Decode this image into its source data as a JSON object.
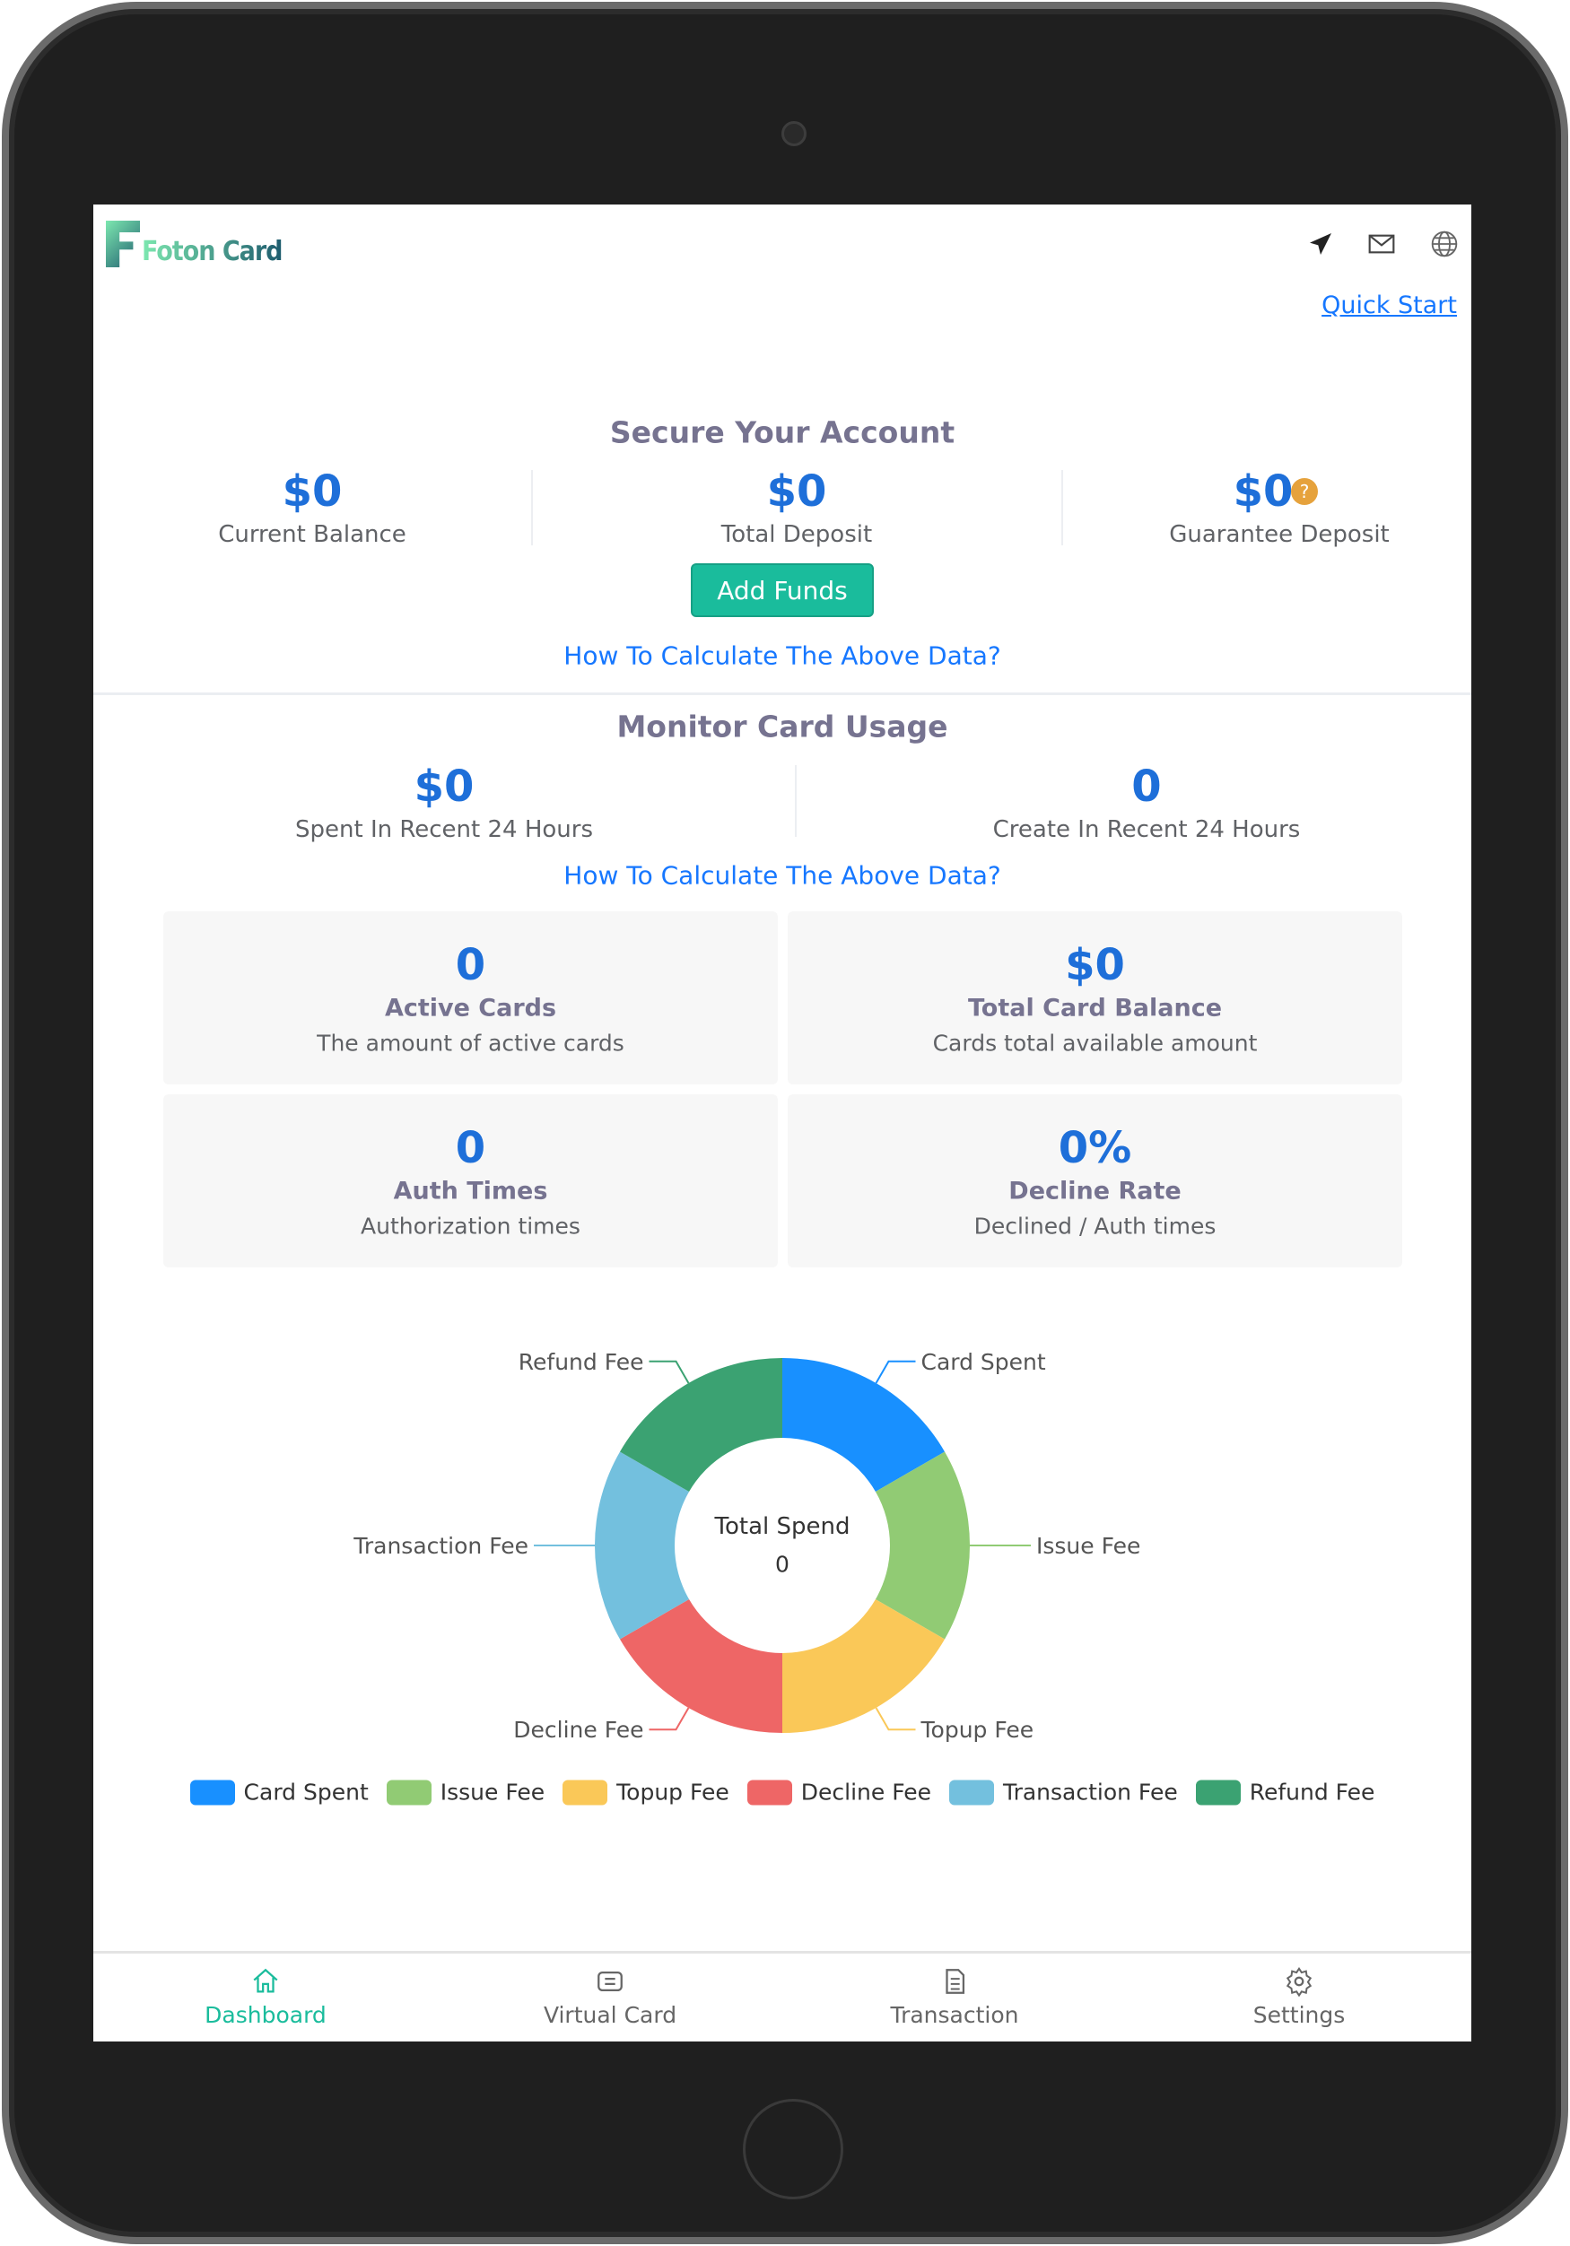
{
  "header": {
    "logo_text": "Foton Card",
    "quick_start": "Quick Start",
    "icons": [
      "send-icon",
      "mail-icon",
      "globe-icon"
    ]
  },
  "secure": {
    "title": "Secure Your Account",
    "stats": [
      {
        "value": "$0",
        "label": "Current Balance"
      },
      {
        "value": "$0",
        "label": "Total Deposit"
      },
      {
        "value": "$0",
        "label": "Guarantee Deposit",
        "help": "?"
      }
    ],
    "add_funds": "Add Funds",
    "how_link": "How To Calculate The Above Data?"
  },
  "monitor": {
    "title": "Monitor Card Usage",
    "stats": [
      {
        "value": "$0",
        "label": "Spent In Recent 24 Hours"
      },
      {
        "value": "0",
        "label": "Create In Recent 24 Hours"
      }
    ],
    "how_link": "How To Calculate The Above Data?",
    "cards": [
      {
        "value": "0",
        "title": "Active Cards",
        "sub": "The amount of active cards"
      },
      {
        "value": "$0",
        "title": "Total Card Balance",
        "sub": "Cards total available amount"
      },
      {
        "value": "0",
        "title": "Auth Times",
        "sub": "Authorization times"
      },
      {
        "value": "0%",
        "title": "Decline Rate",
        "sub": "Declined / Auth times"
      }
    ]
  },
  "chart_data": {
    "type": "pie",
    "center_title": "Total Spend",
    "center_value": "0",
    "categories": [
      "Card Spent",
      "Issue Fee",
      "Topup Fee",
      "Decline Fee",
      "Transaction Fee",
      "Refund Fee"
    ],
    "values": [
      0,
      0,
      0,
      0,
      0,
      0
    ],
    "colors": [
      "#1890ff",
      "#91cb74",
      "#fac858",
      "#ee6666",
      "#73c0de",
      "#3ba272"
    ],
    "legend_position": "bottom"
  },
  "nav": [
    {
      "label": "Dashboard",
      "icon": "home-icon"
    },
    {
      "label": "Virtual Card",
      "icon": "card-icon"
    },
    {
      "label": "Transaction",
      "icon": "document-icon"
    },
    {
      "label": "Settings",
      "icon": "gear-icon"
    }
  ]
}
